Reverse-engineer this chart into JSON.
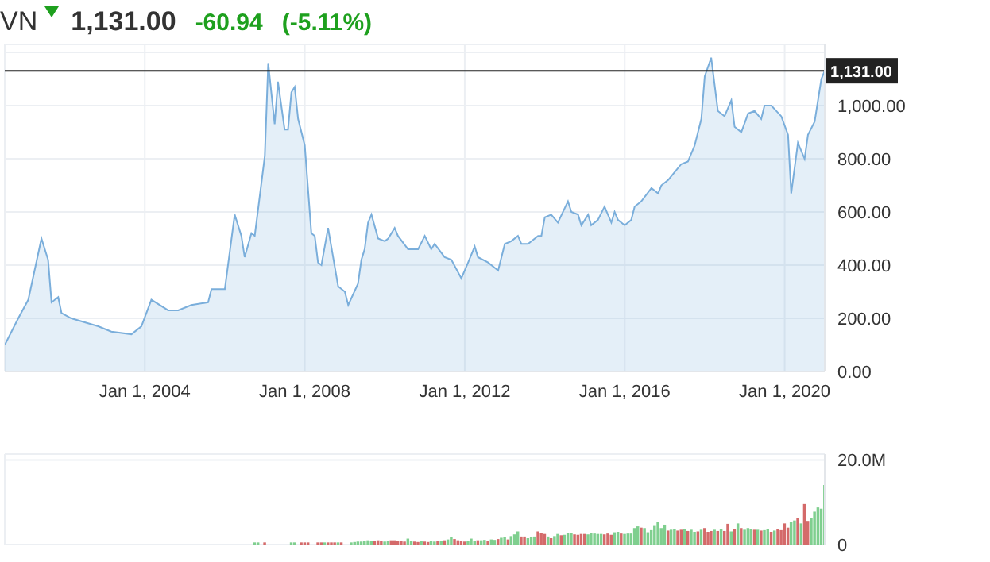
{
  "chart_data": [
    {
      "type": "area",
      "title": "VN",
      "annotations": [
        "1,131.00",
        "-60.94",
        "(-5.11%)"
      ],
      "x": [
        "2000-07",
        "2000-11",
        "2001-02",
        "2001-06",
        "2001-08",
        "2001-09",
        "2001-11",
        "2001-12",
        "2002-03",
        "2002-11",
        "2003-03",
        "2003-09",
        "2003-12",
        "2004-03",
        "2004-08",
        "2004-11",
        "2005-03",
        "2005-08",
        "2005-09",
        "2006-01",
        "2006-04",
        "2006-06",
        "2006-07",
        "2006-09",
        "2006-10",
        "2007-01",
        "2007-02",
        "2007-04",
        "2007-05",
        "2007-07",
        "2007-08",
        "2007-09",
        "2007-10",
        "2007-11",
        "2008-01",
        "2008-03",
        "2008-04",
        "2008-05",
        "2008-06",
        "2008-08",
        "2008-11",
        "2009-01",
        "2009-02",
        "2009-05",
        "2009-06",
        "2009-07",
        "2009-08",
        "2009-09",
        "2009-11",
        "2010-01",
        "2010-02",
        "2010-04",
        "2010-05",
        "2010-08",
        "2010-11",
        "2011-01",
        "2011-03",
        "2011-04",
        "2011-07",
        "2011-09",
        "2011-12",
        "2012-02",
        "2012-04",
        "2012-05",
        "2012-08",
        "2012-11",
        "2013-01",
        "2013-03",
        "2013-05",
        "2013-06",
        "2013-08",
        "2013-11",
        "2013-12",
        "2014-01",
        "2014-03",
        "2014-05",
        "2014-08",
        "2014-09",
        "2014-11",
        "2014-12",
        "2015-02",
        "2015-03",
        "2015-05",
        "2015-07",
        "2015-09",
        "2015-10",
        "2015-11",
        "2016-01",
        "2016-03",
        "2016-04",
        "2016-06",
        "2016-09",
        "2016-11",
        "2016-12",
        "2017-02",
        "2017-04",
        "2017-06",
        "2017-08",
        "2017-10",
        "2017-12",
        "2018-01",
        "2018-03",
        "2018-05",
        "2018-07",
        "2018-09",
        "2018-10",
        "2018-12",
        "2019-02",
        "2019-04",
        "2019-06",
        "2019-07",
        "2019-09",
        "2019-12",
        "2020-02",
        "2020-03",
        "2020-05",
        "2020-07",
        "2020-08",
        "2020-10",
        "2020-12",
        "2021-01"
      ],
      "series": [
        {
          "color": "#7aaedb",
          "values": [
            100,
            200,
            270,
            500,
            420,
            260,
            280,
            220,
            200,
            170,
            150,
            140,
            170,
            270,
            230,
            230,
            250,
            260,
            310,
            310,
            590,
            510,
            430,
            520,
            510,
            810,
            1160,
            930,
            1090,
            910,
            910,
            1050,
            1070,
            950,
            850,
            520,
            510,
            410,
            400,
            540,
            320,
            300,
            250,
            330,
            420,
            460,
            560,
            590,
            500,
            490,
            500,
            540,
            510,
            460,
            460,
            510,
            460,
            480,
            430,
            420,
            350,
            410,
            470,
            430,
            410,
            380,
            480,
            490,
            510,
            480,
            480,
            510,
            510,
            580,
            590,
            560,
            640,
            600,
            590,
            550,
            590,
            550,
            570,
            620,
            560,
            600,
            570,
            550,
            570,
            620,
            640,
            690,
            670,
            700,
            720,
            750,
            780,
            790,
            850,
            950,
            1110,
            1180,
            980,
            960,
            1020,
            920,
            900,
            970,
            980,
            950,
            1000,
            1000,
            960,
            890,
            670,
            860,
            800,
            890,
            940,
            1100,
            1131
          ]
        }
      ],
      "xlim": [
        "2000-07",
        "2021-01"
      ],
      "xticks": [
        {
          "value": "2004-01-01",
          "label": "Jan 1, 2004"
        },
        {
          "value": "2008-01-01",
          "label": "Jan 1, 2008"
        },
        {
          "value": "2012-01-01",
          "label": "Jan 1, 2012"
        },
        {
          "value": "2016-01-01",
          "label": "Jan 1, 2016"
        },
        {
          "value": "2020-01-01",
          "label": "Jan 1, 2020"
        }
      ],
      "ylim": [
        0,
        1230
      ],
      "yticks": [
        {
          "value": 0,
          "label": "0.00"
        },
        {
          "value": 200,
          "label": "200.00"
        },
        {
          "value": 400,
          "label": "400.00"
        },
        {
          "value": 600,
          "label": "600.00"
        },
        {
          "value": 800,
          "label": "800.00"
        },
        {
          "value": 1000,
          "label": "1,000.00"
        },
        {
          "value": 1200,
          "label": null
        }
      ],
      "ref_lines": [
        {
          "axis": "y",
          "value": 1131,
          "label": "1,131.00",
          "color": "#222222"
        }
      ],
      "grid": true
    },
    {
      "type": "bar",
      "tick_labels": "y",
      "grid": true,
      "x": [
        "2006-10",
        "2006-11",
        "2007-01",
        "2007-09",
        "2007-10",
        "2007-12",
        "2008-01",
        "2008-02",
        "2008-05",
        "2008-06",
        "2008-07",
        "2008-08",
        "2008-09",
        "2008-10",
        "2008-11",
        "2008-12",
        "2009-03",
        "2009-04",
        "2009-05",
        "2009-06",
        "2009-07",
        "2009-08",
        "2009-09",
        "2009-10",
        "2009-11",
        "2009-12",
        "2010-01",
        "2010-02",
        "2010-03",
        "2010-04",
        "2010-05",
        "2010-06",
        "2010-07",
        "2010-08",
        "2010-09",
        "2010-10",
        "2010-11",
        "2010-12",
        "2011-01",
        "2011-02",
        "2011-03",
        "2011-04",
        "2011-05",
        "2011-06",
        "2011-07",
        "2011-08",
        "2011-09",
        "2011-10",
        "2011-11",
        "2011-12",
        "2012-01",
        "2012-02",
        "2012-03",
        "2012-04",
        "2012-05",
        "2012-06",
        "2012-07",
        "2012-08",
        "2012-09",
        "2012-10",
        "2012-11",
        "2012-12",
        "2013-01",
        "2013-02",
        "2013-03",
        "2013-04",
        "2013-05",
        "2013-06",
        "2013-07",
        "2013-08",
        "2013-09",
        "2013-10",
        "2013-11",
        "2013-12",
        "2014-01",
        "2014-02",
        "2014-03",
        "2014-04",
        "2014-05",
        "2014-06",
        "2014-07",
        "2014-08",
        "2014-09",
        "2014-10",
        "2014-11",
        "2014-12",
        "2015-01",
        "2015-02",
        "2015-03",
        "2015-04",
        "2015-05",
        "2015-06",
        "2015-07",
        "2015-08",
        "2015-09",
        "2015-10",
        "2015-11",
        "2015-12",
        "2016-01",
        "2016-02",
        "2016-03",
        "2016-04",
        "2016-05",
        "2016-06",
        "2016-07",
        "2016-08",
        "2016-09",
        "2016-10",
        "2016-11",
        "2016-12",
        "2017-01",
        "2017-02",
        "2017-03",
        "2017-04",
        "2017-05",
        "2017-06",
        "2017-07",
        "2017-08",
        "2017-09",
        "2017-10",
        "2017-11",
        "2017-12",
        "2018-01",
        "2018-02",
        "2018-03",
        "2018-04",
        "2018-05",
        "2018-06",
        "2018-07",
        "2018-08",
        "2018-09",
        "2018-10",
        "2018-11",
        "2018-12",
        "2019-01",
        "2019-02",
        "2019-03",
        "2019-04",
        "2019-05",
        "2019-06",
        "2019-07",
        "2019-08",
        "2019-09",
        "2019-10",
        "2019-11",
        "2019-12",
        "2020-01",
        "2020-02",
        "2020-03",
        "2020-04",
        "2020-05",
        "2020-06",
        "2020-07",
        "2020-08",
        "2020-09",
        "2020-10",
        "2020-11",
        "2020-12",
        "2021-01"
      ],
      "values": [
        0.5,
        0.5,
        0.5,
        0.5,
        0.5,
        0.5,
        0.5,
        0.5,
        0.5,
        0.5,
        0.5,
        0.5,
        0.5,
        0.5,
        0.5,
        0.5,
        0.5,
        0.6,
        0.7,
        0.7,
        0.8,
        1.0,
        0.9,
        0.8,
        1.0,
        0.8,
        0.7,
        0.9,
        1.0,
        1.0,
        0.9,
        0.8,
        0.7,
        1.4,
        0.8,
        0.7,
        0.6,
        0.8,
        0.7,
        0.6,
        0.9,
        0.7,
        0.8,
        0.9,
        1.0,
        1.2,
        1.7,
        1.3,
        1.0,
        0.8,
        0.7,
        0.8,
        1.4,
        0.9,
        1.0,
        1.0,
        1.1,
        0.9,
        1.2,
        1.1,
        1.3,
        1.6,
        1.7,
        1.2,
        2.0,
        2.4,
        3.1,
        1.9,
        1.9,
        1.5,
        1.8,
        1.9,
        3.1,
        2.7,
        2.5,
        1.9,
        1.5,
        2.0,
        2.5,
        2.2,
        2.3,
        2.8,
        2.8,
        2.4,
        2.3,
        2.5,
        2.5,
        2.4,
        2.7,
        2.6,
        2.5,
        2.5,
        2.4,
        2.6,
        2.3,
        2.9,
        3.0,
        2.6,
        2.5,
        2.6,
        2.6,
        3.9,
        4.3,
        4.0,
        3.9,
        2.9,
        3.4,
        4.4,
        5.4,
        3.9,
        4.7,
        3.3,
        3.5,
        3.7,
        3.3,
        3.5,
        3.7,
        3.2,
        3.5,
        3.0,
        3.1,
        3.5,
        3.9,
        3.0,
        3.2,
        3.5,
        3.2,
        3.7,
        3.2,
        4.9,
        3.1,
        3.6,
        5.0,
        3.9,
        3.5,
        3.9,
        3.6,
        3.5,
        3.5,
        3.3,
        3.4,
        3.6,
        3.0,
        3.3,
        3.6,
        3.4,
        5.0,
        4.0,
        5.4,
        5.7,
        6.2,
        5.0,
        9.6,
        5.6,
        6.3,
        7.8,
        8.8,
        8.5,
        14.1
      ],
      "colors": [
        "#7fcf8f",
        "#7fcf8f",
        "#d46a6a",
        "#7fcf8f",
        "#7fcf8f",
        "#d46a6a",
        "#d46a6a",
        "#d46a6a",
        "#d46a6a",
        "#d46a6a",
        "#7fcf8f",
        "#d46a6a",
        "#d46a6a",
        "#d46a6a",
        "#7fcf8f",
        "#d46a6a",
        "#7fcf8f",
        "#7fcf8f",
        "#7fcf8f",
        "#7fcf8f",
        "#7fcf8f",
        "#7fcf8f",
        "#7fcf8f",
        "#d46a6a",
        "#d46a6a",
        "#d46a6a",
        "#7fcf8f",
        "#7fcf8f",
        "#d46a6a",
        "#d46a6a",
        "#d46a6a",
        "#d46a6a",
        "#d46a6a",
        "#7fcf8f",
        "#7fcf8f",
        "#d46a6a",
        "#d46a6a",
        "#7fcf8f",
        "#d46a6a",
        "#d46a6a",
        "#7fcf8f",
        "#7fcf8f",
        "#d46a6a",
        "#7fcf8f",
        "#d46a6a",
        "#7fcf8f",
        "#7fcf8f",
        "#d46a6a",
        "#d46a6a",
        "#d46a6a",
        "#d46a6a",
        "#7fcf8f",
        "#7fcf8f",
        "#7fcf8f",
        "#d46a6a",
        "#7fcf8f",
        "#7fcf8f",
        "#d46a6a",
        "#7fcf8f",
        "#7fcf8f",
        "#d46a6a",
        "#7fcf8f",
        "#7fcf8f",
        "#d46a6a",
        "#7fcf8f",
        "#7fcf8f",
        "#7fcf8f",
        "#d46a6a",
        "#d46a6a",
        "#7fcf8f",
        "#7fcf8f",
        "#7fcf8f",
        "#d46a6a",
        "#d46a6a",
        "#d46a6a",
        "#7fcf8f",
        "#d46a6a",
        "#7fcf8f",
        "#7fcf8f",
        "#d46a6a",
        "#7fcf8f",
        "#7fcf8f",
        "#7fcf8f",
        "#d46a6a",
        "#d46a6a",
        "#d46a6a",
        "#d46a6a",
        "#7fcf8f",
        "#7fcf8f",
        "#7fcf8f",
        "#7fcf8f",
        "#7fcf8f",
        "#d46a6a",
        "#d46a6a",
        "#d46a6a",
        "#7fcf8f",
        "#7fcf8f",
        "#d46a6a",
        "#7fcf8f",
        "#7fcf8f",
        "#7fcf8f",
        "#7fcf8f",
        "#7fcf8f",
        "#d46a6a",
        "#7fcf8f",
        "#7fcf8f",
        "#7fcf8f",
        "#7fcf8f",
        "#7fcf8f",
        "#7fcf8f",
        "#7fcf8f",
        "#d46a6a",
        "#7fcf8f",
        "#7fcf8f",
        "#d46a6a",
        "#d46a6a",
        "#7fcf8f",
        "#d46a6a",
        "#7fcf8f",
        "#7fcf8f",
        "#d46a6a",
        "#7fcf8f",
        "#d46a6a",
        "#d46a6a",
        "#d46a6a",
        "#7fcf8f",
        "#d46a6a",
        "#7fcf8f",
        "#d46a6a",
        "#d46a6a",
        "#7fcf8f",
        "#d46a6a",
        "#7fcf8f",
        "#d46a6a",
        "#7fcf8f",
        "#7fcf8f",
        "#7fcf8f",
        "#d46a6a",
        "#7fcf8f",
        "#d46a6a",
        "#7fcf8f",
        "#7fcf8f",
        "#d46a6a",
        "#7fcf8f",
        "#d46a6a",
        "#d46a6a",
        "#d46a6a",
        "#d46a6a",
        "#7fcf8f",
        "#7fcf8f",
        "#d46a6a",
        "#7fcf8f",
        "#d46a6a",
        "#d46a6a",
        "#7fcf8f",
        "#7fcf8f",
        "#7fcf8f",
        "#7fcf8f",
        "#7fcf8f"
      ],
      "xlim": [
        "2000-07",
        "2021-01"
      ],
      "xticks": [
        "2004-01-01",
        "2008-01-01",
        "2012-01-01",
        "2016-01-01",
        "2020-01-01"
      ],
      "ylim": [
        0,
        21.4
      ],
      "yticks": [
        0,
        {
          "value": 20,
          "label": "20.0M"
        }
      ]
    }
  ]
}
